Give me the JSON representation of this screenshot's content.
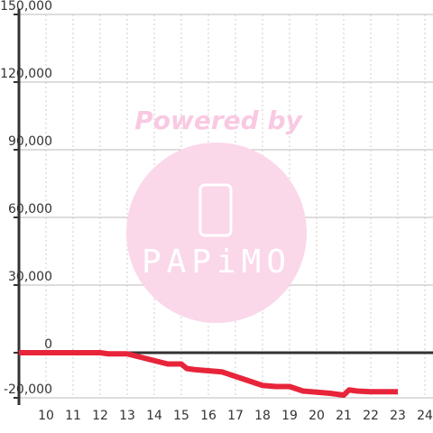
{
  "chart_data": {
    "type": "line",
    "x": [
      9,
      10,
      11,
      12,
      12.3,
      13,
      13.5,
      14,
      14.5,
      15,
      15.2,
      15.5,
      16,
      16.5,
      17,
      17.5,
      18,
      18.5,
      19,
      19.5,
      20,
      20.5,
      21,
      21.2,
      21.5,
      22,
      23
    ],
    "series": [
      {
        "color": "#e8243a",
        "values": [
          0,
          0,
          0,
          0,
          -500,
          -500,
          -2000,
          -3500,
          -5000,
          -5000,
          -7000,
          -7500,
          -8000,
          -8500,
          -10500,
          -12500,
          -14500,
          -15000,
          -15000,
          -17000,
          -17500,
          -18000,
          -18800,
          -16500,
          -17000,
          -17300,
          -17300
        ]
      }
    ],
    "xlim": [
      9,
      24.3
    ],
    "xticks": [
      10,
      11,
      12,
      13,
      14,
      15,
      16,
      17,
      18,
      19,
      20,
      21,
      22,
      23,
      24
    ],
    "ylim": [
      -20000,
      150000
    ],
    "yticks": [
      {
        "value": -20000,
        "label": "-20,000"
      },
      0,
      {
        "value": 30000,
        "label": "30,000"
      },
      {
        "value": 60000,
        "label": "60,000"
      },
      {
        "value": 90000,
        "label": "90,000"
      },
      {
        "value": 120000,
        "label": "120,000"
      },
      {
        "value": 150000,
        "label": "150,000"
      }
    ],
    "grid": true,
    "watermark": {
      "line1": "Powered by",
      "line2": "PAPiMO"
    }
  }
}
